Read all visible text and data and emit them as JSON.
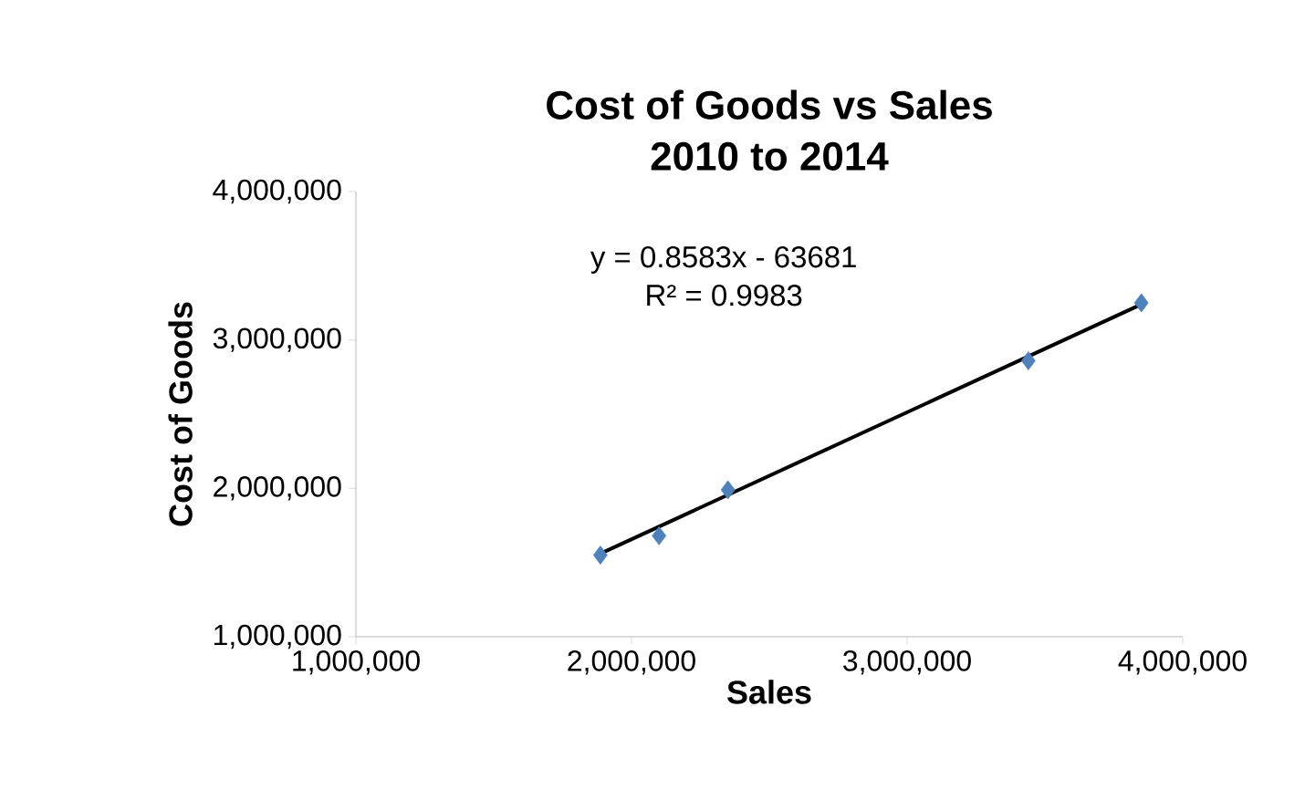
{
  "chart_data": {
    "type": "scatter",
    "title": "Cost of Goods vs Sales\n2010 to 2014",
    "xlabel": "Sales",
    "ylabel": "Cost of Goods",
    "annotations": [
      "y = 0.8583x - 63681",
      "R² = 0.9983"
    ],
    "xlim": [
      1000000,
      4000000
    ],
    "ylim": [
      1000000,
      4000000
    ],
    "xticks": [
      {
        "value": 1000000,
        "label": "1,000,000"
      },
      {
        "value": 2000000,
        "label": "2,000,000"
      },
      {
        "value": 3000000,
        "label": "3,000,000"
      },
      {
        "value": 4000000,
        "label": "4,000,000"
      }
    ],
    "yticks": [
      {
        "value": 1000000,
        "label": "1,000,000"
      },
      {
        "value": 2000000,
        "label": "2,000,000"
      },
      {
        "value": 3000000,
        "label": "3,000,000"
      },
      {
        "value": 4000000,
        "label": "4,000,000"
      }
    ],
    "grid": false,
    "series": [
      {
        "type": "scatter",
        "color": "#4f81bd",
        "marker": "diamond",
        "x": [
          1887000,
          2100000,
          2350000,
          3440000,
          3850000
        ],
        "values": [
          1550000,
          1680000,
          1990000,
          2860000,
          3250000
        ]
      },
      {
        "type": "line",
        "color": "#000000",
        "marker": "none",
        "line_style": "solid",
        "x": [
          1887000,
          3850000
        ],
        "values": [
          1560000,
          3240000
        ]
      }
    ]
  }
}
